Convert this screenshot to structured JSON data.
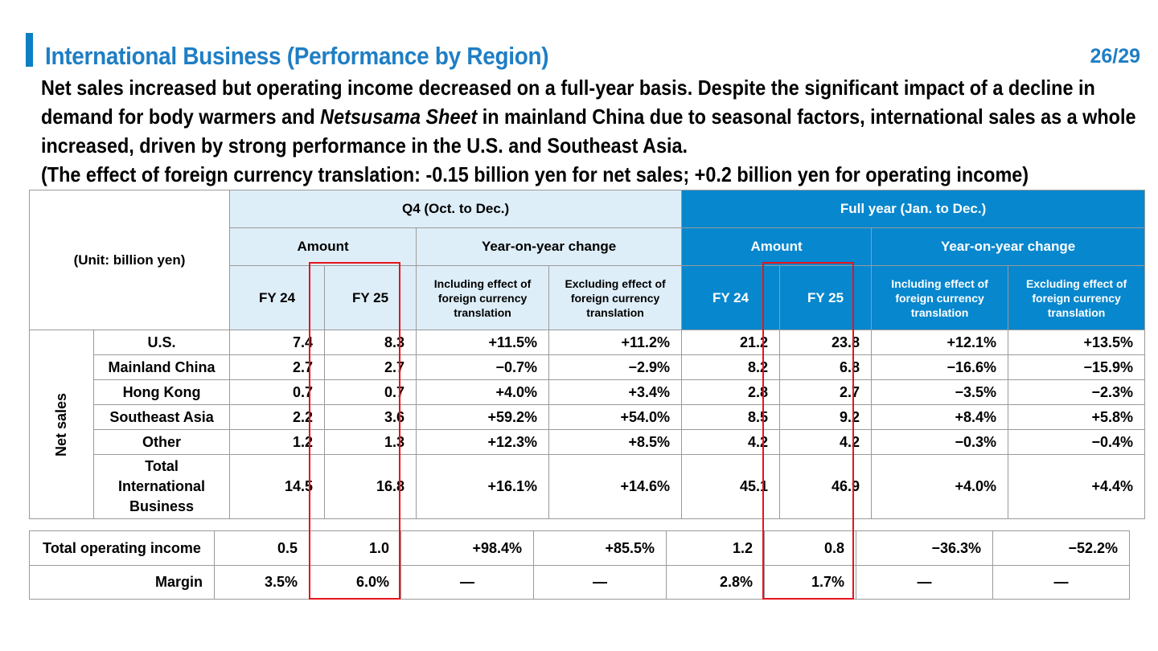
{
  "header": {
    "title": "International Business (Performance by Region)",
    "page_number": "26/29"
  },
  "description": {
    "line1": "Net sales increased but operating income decreased on a full-year basis. Despite the significant impact of a decline in",
    "line2_pre": "demand for body warmers and ",
    "line2_italic": "Netsusama Sheet",
    "line2_post": " in mainland China due to seasonal factors, international sales as a whole",
    "line3": "increased, driven by strong performance in the U.S. and Southeast Asia.",
    "line4": "(The effect of foreign currency translation: -0.15 billion yen for net sales; +0.2 billion yen for operating income)"
  },
  "table": {
    "unit_label": "(Unit: billion yen)",
    "q4_label": "Q4 (Oct. to Dec.)",
    "full_year_label": "Full year (Jan. to Dec.)",
    "amount_label": "Amount",
    "yoy_label": "Year-on-year change",
    "fy24_label": "FY 24",
    "fy25_label": "FY 25",
    "including_label": "Including effect of foreign currency translation",
    "excluding_label": "Excluding effect of foreign currency translation",
    "net_sales_label": "Net sales",
    "rows": [
      {
        "label": "U.S.",
        "q4_fy24": "7.4",
        "q4_fy25": "8.3",
        "q4_incl": "+11.5%",
        "q4_excl": "+11.2%",
        "fy_fy24": "21.2",
        "fy_fy25": "23.8",
        "fy_incl": "+12.1%",
        "fy_excl": "+13.5%"
      },
      {
        "label": "Mainland China",
        "q4_fy24": "2.7",
        "q4_fy25": "2.7",
        "q4_incl": "−0.7%",
        "q4_excl": "−2.9%",
        "fy_fy24": "8.2",
        "fy_fy25": "6.8",
        "fy_incl": "−16.6%",
        "fy_excl": "−15.9%"
      },
      {
        "label": "Hong Kong",
        "q4_fy24": "0.7",
        "q4_fy25": "0.7",
        "q4_incl": "+4.0%",
        "q4_excl": "+3.4%",
        "fy_fy24": "2.8",
        "fy_fy25": "2.7",
        "fy_incl": "−3.5%",
        "fy_excl": "−2.3%"
      },
      {
        "label": "Southeast Asia",
        "q4_fy24": "2.2",
        "q4_fy25": "3.6",
        "q4_incl": "+59.2%",
        "q4_excl": "+54.0%",
        "fy_fy24": "8.5",
        "fy_fy25": "9.2",
        "fy_incl": "+8.4%",
        "fy_excl": "+5.8%"
      },
      {
        "label": "Other",
        "q4_fy24": "1.2",
        "q4_fy25": "1.3",
        "q4_incl": "+12.3%",
        "q4_excl": "+8.5%",
        "fy_fy24": "4.2",
        "fy_fy25": "4.2",
        "fy_incl": "−0.3%",
        "fy_excl": "−0.4%"
      },
      {
        "label": "Total International Business",
        "q4_fy24": "14.5",
        "q4_fy25": "16.8",
        "q4_incl": "+16.1%",
        "q4_excl": "+14.6%",
        "fy_fy24": "45.1",
        "fy_fy25": "46.9",
        "fy_incl": "+4.0%",
        "fy_excl": "+4.4%"
      }
    ],
    "operating_income": {
      "label": "Total operating income",
      "q4_fy24": "0.5",
      "q4_fy25": "1.0",
      "q4_incl": "+98.4%",
      "q4_excl": "+85.5%",
      "fy_fy24": "1.2",
      "fy_fy25": "0.8",
      "fy_incl": "−36.3%",
      "fy_excl": "−52.2%"
    },
    "margin": {
      "label": "Margin",
      "q4_fy24": "3.5%",
      "q4_fy25": "6.0%",
      "q4_incl": "—",
      "q4_excl": "—",
      "fy_fy24": "2.8%",
      "fy_fy25": "1.7%",
      "fy_incl": "—",
      "fy_excl": "—"
    }
  },
  "colors": {
    "accent": "#1f7ec4",
    "full_year_header": "#0787ce",
    "q4_header": "#deeef8",
    "highlight": "#e8131b"
  }
}
